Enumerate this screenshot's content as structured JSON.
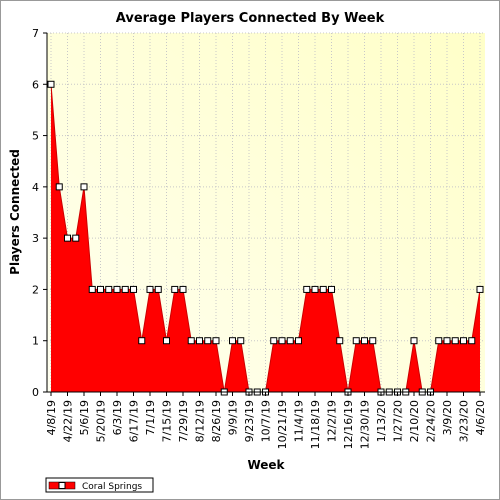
{
  "colors": {
    "series_fill": "#ff0000",
    "series_line": "#cc0000",
    "plot_bg_start": "#fffff0",
    "plot_bg_end": "#ffffc8",
    "grid": "#c8c8c8"
  },
  "chart_data": {
    "type": "area",
    "title": "Average Players Connected By Week",
    "xlabel": "Week",
    "ylabel": "Players Connected",
    "ylim": [
      0,
      7
    ],
    "yticks": [
      0,
      1,
      2,
      3,
      4,
      5,
      6,
      7
    ],
    "grid": true,
    "legend_position": "bottom-left",
    "x": [
      "4/8/19",
      "4/15/19",
      "4/22/19",
      "4/29/19",
      "5/6/19",
      "5/13/19",
      "5/20/19",
      "5/27/19",
      "6/3/19",
      "6/10/19",
      "6/17/19",
      "6/24/19",
      "7/1/19",
      "7/8/19",
      "7/15/19",
      "7/22/19",
      "7/29/19",
      "8/5/19",
      "8/12/19",
      "8/19/19",
      "8/26/19",
      "9/2/19",
      "9/9/19",
      "9/16/19",
      "9/23/19",
      "9/30/19",
      "10/7/19",
      "10/14/19",
      "10/21/19",
      "10/28/19",
      "11/4/19",
      "11/11/19",
      "11/18/19",
      "11/25/19",
      "12/2/19",
      "12/9/19",
      "12/16/19",
      "12/23/19",
      "12/30/19",
      "1/6/20",
      "1/13/20",
      "1/20/20",
      "1/27/20",
      "2/3/20",
      "2/10/20",
      "2/17/20",
      "2/24/20",
      "3/2/20",
      "3/9/20",
      "3/16/20",
      "3/23/20",
      "3/30/20",
      "4/6/20"
    ],
    "xtick_labels": [
      "4/8/19",
      "4/22/19",
      "5/6/19",
      "5/20/19",
      "6/3/19",
      "6/17/19",
      "7/1/19",
      "7/15/19",
      "7/29/19",
      "8/12/19",
      "8/26/19",
      "9/9/19",
      "9/23/19",
      "10/7/19",
      "10/21/19",
      "11/4/19",
      "11/18/19",
      "12/2/19",
      "12/16/19",
      "12/30/19",
      "1/13/20",
      "1/27/20",
      "2/10/20",
      "2/24/20",
      "3/9/20",
      "3/23/20",
      "4/6/20"
    ],
    "series": [
      {
        "name": "Coral Springs",
        "values": [
          6,
          4,
          3,
          3,
          4,
          2,
          2,
          2,
          2,
          2,
          2,
          1,
          2,
          2,
          1,
          2,
          2,
          1,
          1,
          1,
          1,
          0,
          1,
          1,
          0,
          0,
          0,
          1,
          1,
          1,
          1,
          2,
          2,
          2,
          2,
          1,
          0,
          1,
          1,
          1,
          0,
          0,
          0,
          0,
          1,
          0,
          0,
          1,
          1,
          1,
          1,
          1,
          2
        ]
      }
    ]
  }
}
